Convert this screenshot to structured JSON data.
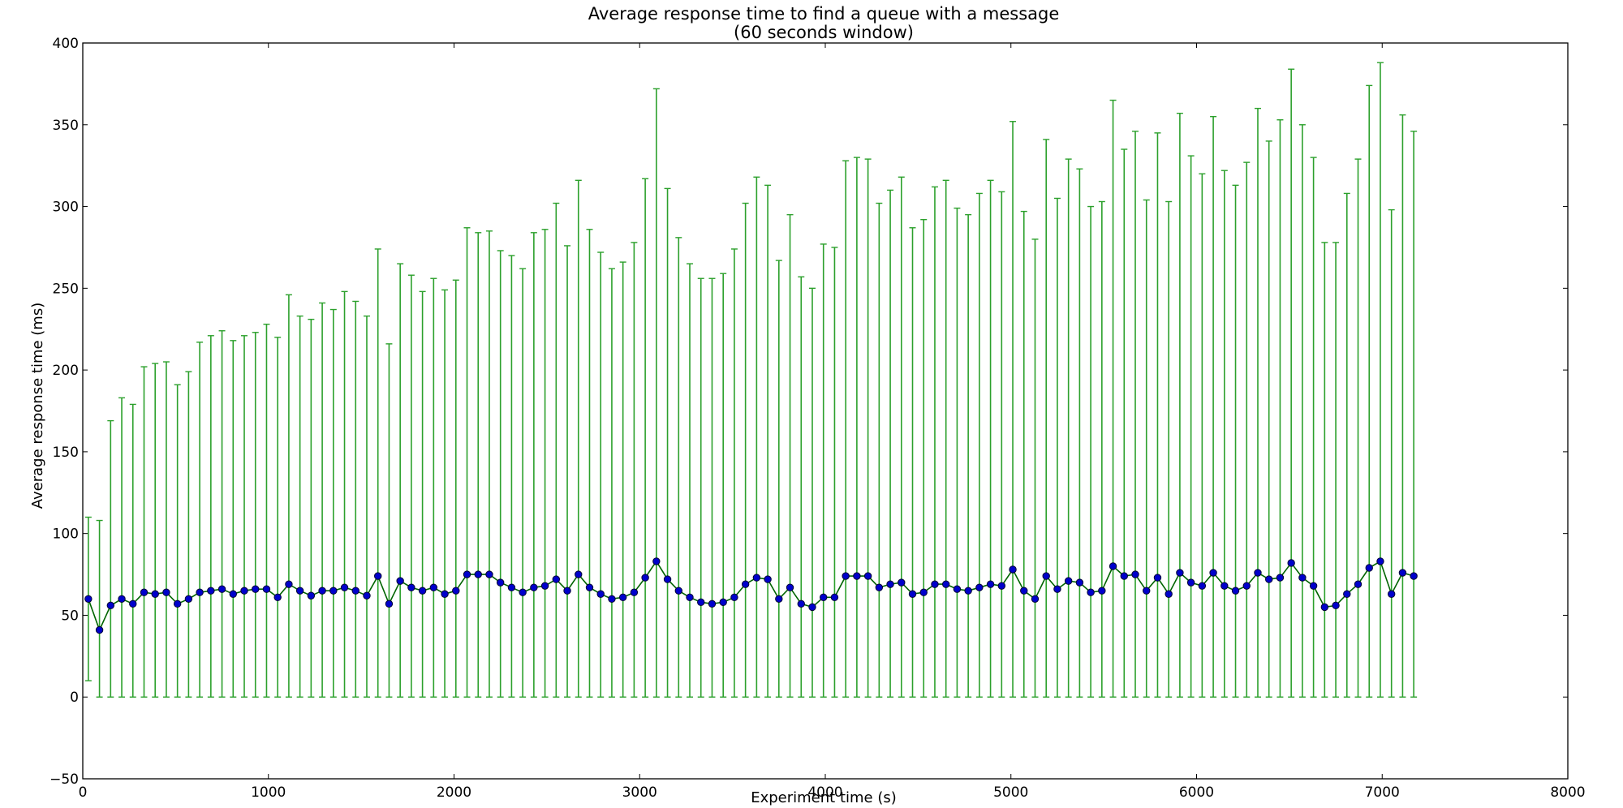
{
  "chart_data": {
    "type": "line",
    "title": "Average response time to find a queue with a message",
    "subtitle": "(60 seconds window)",
    "xlabel": "Experiment time (s)",
    "ylabel": "Average response time (ms)",
    "xlim": [
      0,
      8000
    ],
    "ylim": [
      -50,
      400
    ],
    "xticks": [
      0,
      1000,
      2000,
      3000,
      4000,
      5000,
      6000,
      7000,
      8000
    ],
    "yticks": [
      -50,
      0,
      50,
      100,
      150,
      200,
      250,
      300,
      350,
      400
    ],
    "grid": false,
    "legend": "none",
    "colors": {
      "line": "#006400",
      "errorbar": "#2ca02c",
      "marker": "#0000cc",
      "marker_edge": "#000033"
    },
    "series": [
      {
        "x": [
          30,
          90,
          150,
          210,
          270,
          330,
          390,
          450,
          510,
          570,
          630,
          690,
          750,
          810,
          870,
          930,
          990,
          1050,
          1110,
          1170,
          1230,
          1290,
          1350,
          1410,
          1470,
          1530,
          1590,
          1650,
          1710,
          1770,
          1830,
          1890,
          1950,
          2010,
          2070,
          2130,
          2190,
          2250,
          2310,
          2370,
          2430,
          2490,
          2550,
          2610,
          2670,
          2730,
          2790,
          2850,
          2910,
          2970,
          3030,
          3090,
          3150,
          3210,
          3270,
          3330,
          3390,
          3450,
          3510,
          3570,
          3630,
          3690,
          3750,
          3810,
          3870,
          3930,
          3990,
          4050,
          4110,
          4170,
          4230,
          4290,
          4350,
          4410,
          4470,
          4530,
          4590,
          4650,
          4710,
          4770,
          4830,
          4890,
          4950,
          5010,
          5070,
          5130,
          5190,
          5250,
          5310,
          5370,
          5430,
          5490,
          5550,
          5610,
          5670,
          5730,
          5790,
          5850,
          5910,
          5970,
          6030,
          6090,
          6150,
          6210,
          6270,
          6330,
          6390,
          6450,
          6510,
          6570,
          6630,
          6690,
          6750,
          6810,
          6870,
          6930,
          6990,
          7050,
          7110,
          7170
        ],
        "y": [
          60,
          41,
          56,
          60,
          57,
          64,
          63,
          64,
          57,
          60,
          64,
          65,
          66,
          63,
          65,
          66,
          66,
          61,
          69,
          65,
          62,
          65,
          65,
          67,
          65,
          62,
          74,
          57,
          71,
          67,
          65,
          67,
          63,
          65,
          75,
          75,
          75,
          70,
          67,
          64,
          67,
          68,
          72,
          65,
          75,
          67,
          63,
          60,
          61,
          64,
          73,
          83,
          72,
          65,
          61,
          58,
          57,
          58,
          61,
          69,
          73,
          72,
          60,
          67,
          57,
          55,
          61,
          61,
          74,
          74,
          74,
          67,
          69,
          70,
          63,
          64,
          69,
          69,
          66,
          65,
          67,
          69,
          68,
          78,
          65,
          60,
          74,
          66,
          71,
          70,
          64,
          65,
          80,
          74,
          75,
          65,
          73,
          63,
          76,
          70,
          68,
          76,
          68,
          65,
          68,
          76,
          72,
          73,
          82,
          73,
          68,
          55,
          56,
          63,
          69,
          79,
          83,
          63,
          76,
          74
        ],
        "err_low": [
          10,
          0,
          0,
          0,
          0,
          0,
          0,
          0,
          0,
          0,
          0,
          0,
          0,
          0,
          0,
          0,
          0,
          0,
          0,
          0,
          0,
          0,
          0,
          0,
          0,
          0,
          0,
          0,
          0,
          0,
          0,
          0,
          0,
          0,
          0,
          0,
          0,
          0,
          0,
          0,
          0,
          0,
          0,
          0,
          0,
          0,
          0,
          0,
          0,
          0,
          0,
          0,
          0,
          0,
          0,
          0,
          0,
          0,
          0,
          0,
          0,
          0,
          0,
          0,
          0,
          0,
          0,
          0,
          0,
          0,
          0,
          0,
          0,
          0,
          0,
          0,
          0,
          0,
          0,
          0,
          0,
          0,
          0,
          0,
          0,
          0,
          0,
          0,
          0,
          0,
          0,
          0,
          0,
          0,
          0,
          0,
          0,
          0,
          0,
          0,
          0,
          0,
          0,
          0,
          0,
          0,
          0,
          0,
          0,
          0,
          0,
          0,
          0,
          0,
          0,
          0,
          0,
          0,
          0,
          0
        ],
        "err_high": [
          110,
          108,
          169,
          183,
          179,
          202,
          204,
          205,
          191,
          199,
          217,
          221,
          224,
          218,
          221,
          223,
          228,
          220,
          246,
          233,
          231,
          241,
          237,
          248,
          242,
          233,
          274,
          216,
          265,
          258,
          248,
          256,
          249,
          255,
          287,
          284,
          285,
          273,
          270,
          262,
          284,
          286,
          302,
          276,
          316,
          286,
          272,
          262,
          266,
          278,
          317,
          372,
          311,
          281,
          265,
          256,
          256,
          259,
          274,
          302,
          318,
          313,
          267,
          295,
          257,
          250,
          277,
          275,
          328,
          330,
          329,
          302,
          310,
          318,
          287,
          292,
          312,
          316,
          299,
          295,
          308,
          316,
          309,
          352,
          297,
          280,
          341,
          305,
          329,
          323,
          300,
          303,
          365,
          335,
          346,
          304,
          345,
          303,
          357,
          331,
          320,
          355,
          322,
          313,
          327,
          360,
          340,
          353,
          384,
          350,
          330,
          278,
          278,
          308,
          329,
          374,
          388,
          298,
          356,
          346
        ]
      }
    ]
  }
}
